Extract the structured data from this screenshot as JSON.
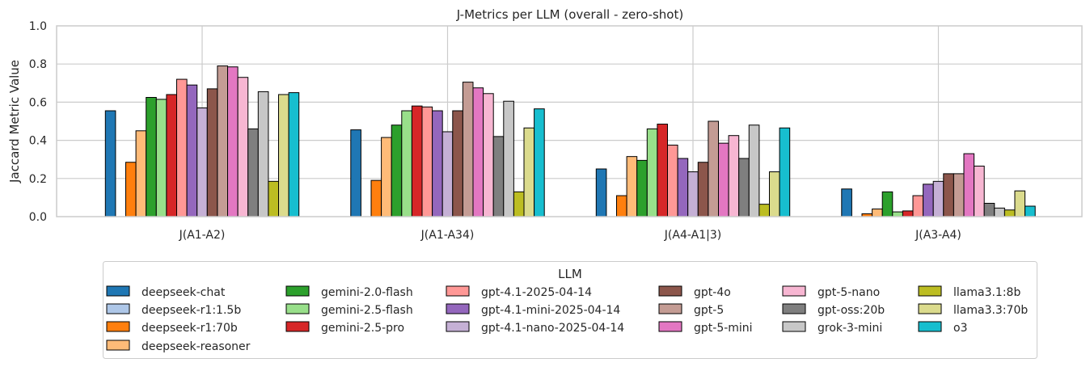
{
  "chart_data": {
    "type": "bar",
    "title": "J-Metrics per LLM (overall - zero-shot)",
    "xlabel": "",
    "ylabel": "Jaccard Metric Value",
    "ylim": [
      0,
      1.0
    ],
    "yticks": [
      "0.0",
      "0.2",
      "0.4",
      "0.6",
      "0.8",
      "1.0"
    ],
    "grid": true,
    "legend_title": "LLM",
    "legend_placement": "bottom-center",
    "categories": [
      "J(A1-A2)",
      "J(A1-A34)",
      "J(A4-A1|3)",
      "J(A3-A4)"
    ],
    "series": [
      {
        "name": "deepseek-chat",
        "color": "#1f77b4",
        "values": [
          0.555,
          0.455,
          0.25,
          0.145
        ]
      },
      {
        "name": "deepseek-r1:1.5b",
        "color": "#aec7e8",
        "values": [
          0,
          0,
          0,
          0
        ]
      },
      {
        "name": "deepseek-r1:70b",
        "color": "#ff7f0e",
        "values": [
          0.285,
          0.19,
          0.11,
          0.015
        ]
      },
      {
        "name": "deepseek-reasoner",
        "color": "#ffbb78",
        "values": [
          0.45,
          0.415,
          0.315,
          0.04
        ]
      },
      {
        "name": "gemini-2.0-flash",
        "color": "#2ca02c",
        "values": [
          0.625,
          0.48,
          0.295,
          0.13
        ]
      },
      {
        "name": "gemini-2.5-flash",
        "color": "#98df8a",
        "values": [
          0.615,
          0.555,
          0.46,
          0.025
        ]
      },
      {
        "name": "gemini-2.5-pro",
        "color": "#d62728",
        "values": [
          0.64,
          0.58,
          0.485,
          0.03
        ]
      },
      {
        "name": "gpt-4.1-2025-04-14",
        "color": "#ff9896",
        "values": [
          0.72,
          0.575,
          0.375,
          0.11
        ]
      },
      {
        "name": "gpt-4.1-mini-2025-04-14",
        "color": "#9467bd",
        "values": [
          0.69,
          0.555,
          0.305,
          0.17
        ]
      },
      {
        "name": "gpt-4.1-nano-2025-04-14",
        "color": "#c5b0d5",
        "values": [
          0.57,
          0.445,
          0.235,
          0.185
        ]
      },
      {
        "name": "gpt-4o",
        "color": "#8c564b",
        "values": [
          0.67,
          0.555,
          0.285,
          0.225
        ]
      },
      {
        "name": "gpt-5",
        "color": "#c49c94",
        "values": [
          0.79,
          0.705,
          0.5,
          0.225
        ]
      },
      {
        "name": "gpt-5-mini",
        "color": "#e377c2",
        "values": [
          0.785,
          0.675,
          0.385,
          0.33
        ]
      },
      {
        "name": "gpt-5-nano",
        "color": "#f7b6d2",
        "values": [
          0.73,
          0.645,
          0.425,
          0.265
        ]
      },
      {
        "name": "gpt-oss:20b",
        "color": "#7f7f7f",
        "values": [
          0.46,
          0.42,
          0.305,
          0.07
        ]
      },
      {
        "name": "grok-3-mini",
        "color": "#c7c7c7",
        "values": [
          0.655,
          0.605,
          0.48,
          0.045
        ]
      },
      {
        "name": "llama3.1:8b",
        "color": "#bcbd22",
        "values": [
          0.185,
          0.13,
          0.065,
          0.035
        ]
      },
      {
        "name": "llama3.3:70b",
        "color": "#dbdb8d",
        "values": [
          0.64,
          0.465,
          0.235,
          0.135
        ]
      },
      {
        "name": "o3",
        "color": "#17becf",
        "values": [
          0.65,
          0.565,
          0.465,
          0.055
        ]
      }
    ]
  }
}
